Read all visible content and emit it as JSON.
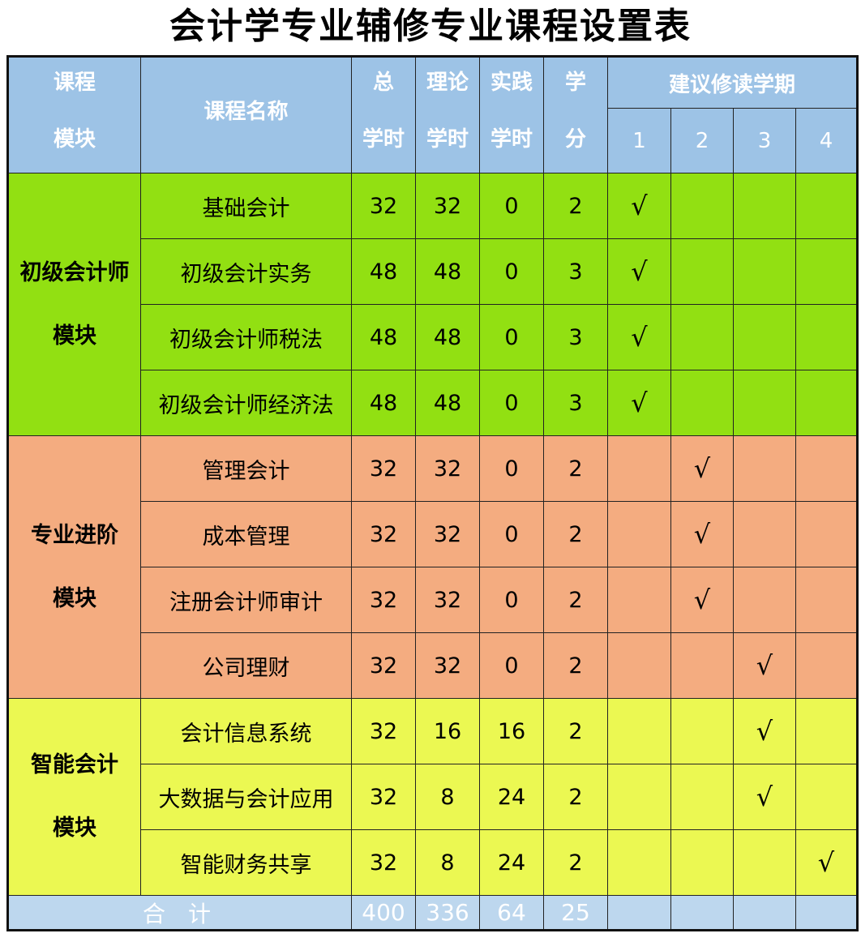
{
  "title": "会计学专业辅修专业课程设置表",
  "header": {
    "module": [
      "课程",
      "模块"
    ],
    "name": "课程名称",
    "total": [
      "总",
      "学时"
    ],
    "theory": [
      "理论",
      "学时"
    ],
    "practice": [
      "实践",
      "学时"
    ],
    "credit": [
      "学",
      "分"
    ],
    "semester": "建议修读学期",
    "semesters": [
      "1",
      "2",
      "3",
      "4"
    ]
  },
  "check_mark": "√",
  "groups": [
    {
      "module": [
        "初级会计师",
        "模块"
      ],
      "color": "#92e012",
      "rows": [
        {
          "name": "基础会计",
          "total": "32",
          "theory": "32",
          "practice": "0",
          "credit": "2",
          "semester": 1
        },
        {
          "name": "初级会计实务",
          "total": "48",
          "theory": "48",
          "practice": "0",
          "credit": "3",
          "semester": 1
        },
        {
          "name": "初级会计师税法",
          "total": "48",
          "theory": "48",
          "practice": "0",
          "credit": "3",
          "semester": 1
        },
        {
          "name": "初级会计师经济法",
          "total": "48",
          "theory": "48",
          "practice": "0",
          "credit": "3",
          "semester": 1
        }
      ]
    },
    {
      "module": [
        "专业进阶",
        "模块"
      ],
      "color": "#f4ac80",
      "rows": [
        {
          "name": "管理会计",
          "total": "32",
          "theory": "32",
          "practice": "0",
          "credit": "2",
          "semester": 2
        },
        {
          "name": "成本管理",
          "total": "32",
          "theory": "32",
          "practice": "0",
          "credit": "2",
          "semester": 2
        },
        {
          "name": "注册会计师审计",
          "total": "32",
          "theory": "32",
          "practice": "0",
          "credit": "2",
          "semester": 2
        },
        {
          "name": "公司理财",
          "total": "32",
          "theory": "32",
          "practice": "0",
          "credit": "2",
          "semester": 3
        }
      ]
    },
    {
      "module": [
        "智能会计",
        "模块"
      ],
      "color": "#ebf852",
      "rows": [
        {
          "name": "会计信息系统",
          "total": "32",
          "theory": "16",
          "practice": "16",
          "credit": "2",
          "semester": 3
        },
        {
          "name": "大数据与会计应用",
          "total": "32",
          "theory": "8",
          "practice": "24",
          "credit": "2",
          "semester": 3
        },
        {
          "name": "智能财务共享",
          "total": "32",
          "theory": "8",
          "practice": "24",
          "credit": "2",
          "semester": 4
        }
      ]
    }
  ],
  "totals": {
    "label": "合　计",
    "total": "400",
    "theory": "336",
    "practice": "64",
    "credit": "25"
  }
}
